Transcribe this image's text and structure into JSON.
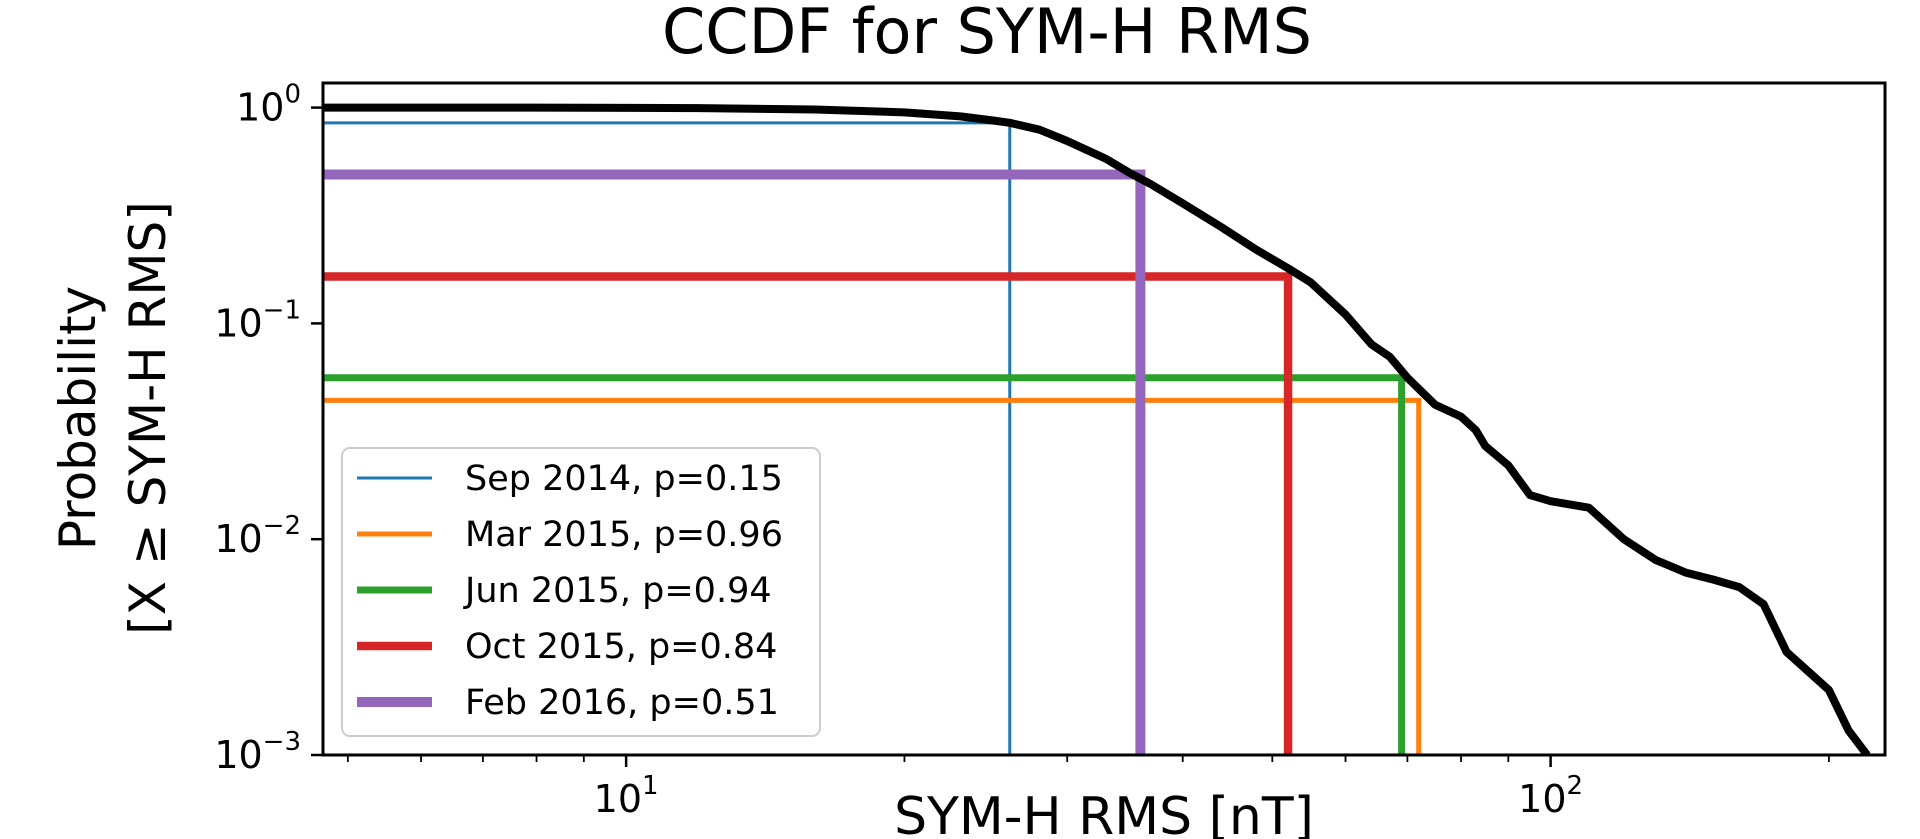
{
  "chart_data": {
    "type": "line",
    "title": "CCDF for SYM-H RMS",
    "xlabel": "SYM-H RMS [nT]",
    "ylabel_line1": "Probability",
    "ylabel_line2": "[X ≥ SYM-H RMS]",
    "xscale": "log",
    "yscale": "log",
    "xlim": [
      4.7,
      230
    ],
    "ylim": [
      0.001,
      1.3
    ],
    "x_ticks": [
      {
        "value": 10,
        "base": "10",
        "exp": "1"
      },
      {
        "value": 100,
        "base": "10",
        "exp": "2"
      }
    ],
    "y_ticks": [
      {
        "value": 1,
        "base": "10",
        "exp": "0"
      },
      {
        "value": 0.1,
        "base": "10",
        "exp": "−1"
      },
      {
        "value": 0.01,
        "base": "10",
        "exp": "−2"
      },
      {
        "value": 0.001,
        "base": "10",
        "exp": "−3"
      }
    ],
    "ccdf_curve": {
      "color": "#000000",
      "x": [
        4.7,
        8,
        12,
        16,
        20,
        23,
        25,
        26,
        28,
        30,
        33,
        35,
        37,
        40,
        44,
        48,
        52,
        55,
        60,
        64,
        67,
        70,
        75,
        80,
        83,
        85,
        90,
        95,
        100,
        110,
        120,
        130,
        140,
        150,
        160,
        170,
        180,
        200,
        210,
        220
      ],
      "y": [
        1.0,
        1.0,
        0.995,
        0.98,
        0.95,
        0.91,
        0.87,
        0.85,
        0.79,
        0.7,
        0.58,
        0.5,
        0.44,
        0.36,
        0.28,
        0.22,
        0.18,
        0.155,
        0.11,
        0.08,
        0.07,
        0.056,
        0.042,
        0.037,
        0.032,
        0.027,
        0.022,
        0.016,
        0.015,
        0.014,
        0.01,
        0.008,
        0.007,
        0.0065,
        0.006,
        0.005,
        0.003,
        0.002,
        0.0013,
        0.001
      ]
    },
    "series": [
      {
        "name": "Sep 2014, p=0.15",
        "x": 26.0,
        "y": 0.85,
        "color": "#1f77b4",
        "width": 3
      },
      {
        "name": "Mar 2015, p=0.96",
        "x": 72.0,
        "y": 0.044,
        "color": "#ff7f0e",
        "width": 5
      },
      {
        "name": "Jun 2015, p=0.94",
        "x": 69.0,
        "y": 0.056,
        "color": "#2ca02c",
        "width": 7
      },
      {
        "name": "Oct 2015, p=0.84",
        "x": 52.0,
        "y": 0.165,
        "color": "#d62728",
        "width": 8.5
      },
      {
        "name": "Feb 2016, p=0.51",
        "x": 36.0,
        "y": 0.49,
        "color": "#9467bd",
        "width": 10
      }
    ],
    "legend_position": "lower-left"
  }
}
